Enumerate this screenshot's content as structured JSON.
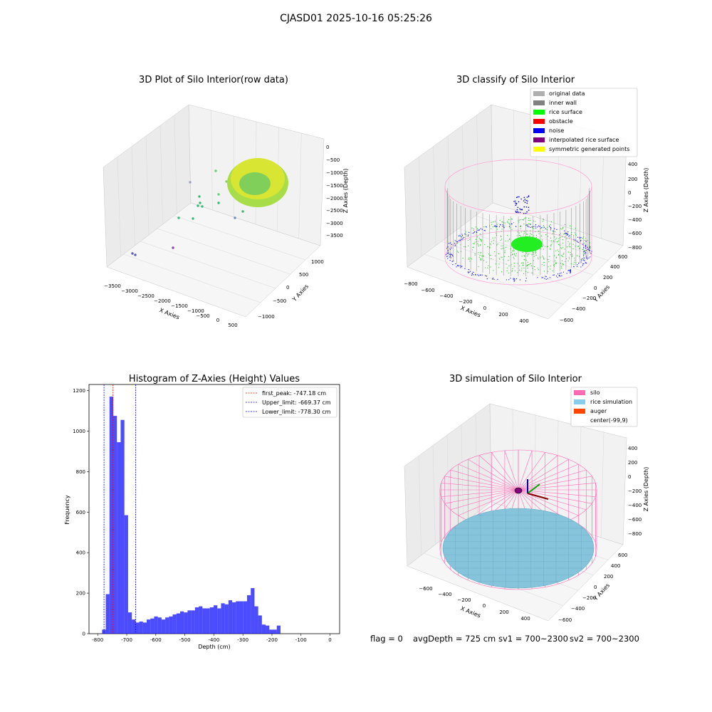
{
  "suptitle": "CJASD01 2025-10-16 05:25:26",
  "panels": {
    "raw": {
      "title": "3D Plot of Silo Interior(row data)",
      "xlabel": "X Axies",
      "ylabel": "Y Axies",
      "zlabel": "Z Axies (Depth)",
      "xticks": [
        "−3500",
        "−3000",
        "−2500",
        "−2000",
        "−1500",
        "−1000",
        "−500",
        "0",
        "500"
      ],
      "yticks": [
        "−1000",
        "−500",
        "0",
        "500",
        "1000"
      ],
      "zticks": [
        "0",
        "−500",
        "−1000",
        "−1500",
        "−2000",
        "−2500",
        "−3000",
        "−3500"
      ]
    },
    "classify": {
      "title": "3D classify of Silo Interior",
      "xlabel": "X Axies",
      "ylabel": "Y Axies",
      "zlabel": "Z Axies (Depth)",
      "xticks": [
        "−800",
        "−600",
        "−400",
        "−200",
        "0",
        "200",
        "400"
      ],
      "yticks": [
        "−600",
        "−400",
        "−200",
        "0",
        "200",
        "400",
        "600"
      ],
      "zticks": [
        "400",
        "200",
        "0",
        "−200",
        "−400",
        "−600",
        "−800"
      ],
      "legend": [
        {
          "label": "original data",
          "color": "#b0b0b0"
        },
        {
          "label": "inner wall",
          "color": "#808080"
        },
        {
          "label": "rice surface",
          "color": "#00ff00"
        },
        {
          "label": "obstacle",
          "color": "#ff0000"
        },
        {
          "label": "noise",
          "color": "#0000ff"
        },
        {
          "label": "interpolated rice surface",
          "color": "#800080"
        },
        {
          "label": "symmetric generated points",
          "color": "#ffff00"
        }
      ]
    },
    "simulation": {
      "title": "3D simulation of Silo Interior",
      "xlabel": "X Axies",
      "ylabel": "Y Axies",
      "zlabel": "Z Axies (Depth)",
      "xticks": [
        "−600",
        "−400",
        "−200",
        "0",
        "200",
        "400"
      ],
      "yticks": [
        "−600",
        "−400",
        "−200",
        "0",
        "200",
        "400",
        "600"
      ],
      "zticks": [
        "400",
        "200",
        "0",
        "−200",
        "−400",
        "−600",
        "−800"
      ],
      "legend": [
        {
          "label": "silo",
          "color": "#ff69b4"
        },
        {
          "label": "rice simulation",
          "color": "#87ceeb"
        },
        {
          "label": "auger",
          "color": "#ff4500"
        },
        {
          "label": "center(-99,9)",
          "color": ""
        }
      ]
    }
  },
  "chart_data": {
    "type": "bar",
    "title": "Histogram of Z-Axies (Height) Values",
    "xlabel": "Depth (cm)",
    "ylabel": "Frequency",
    "xlim": [
      -800,
      0
    ],
    "ylim": [
      0,
      1200
    ],
    "xticks": [
      -800,
      -700,
      -600,
      -500,
      -400,
      -300,
      -200,
      -100,
      0
    ],
    "yticks": [
      0,
      200,
      400,
      600,
      800,
      1000,
      1200
    ],
    "bin_start": -785,
    "bin_width": 12.8,
    "series": [
      {
        "color": "#0000ff",
        "values": [
          20,
          195,
          1170,
          1075,
          945,
          1055,
          585,
          105,
          70,
          55,
          60,
          55,
          70,
          75,
          85,
          80,
          70,
          80,
          85,
          95,
          100,
          110,
          105,
          115,
          115,
          130,
          135,
          125,
          125,
          130,
          140,
          125,
          150,
          145,
          165,
          155,
          160,
          160,
          160,
          190,
          225,
          135,
          90,
          45,
          40,
          20,
          20,
          40
        ]
      }
    ],
    "vlines": [
      {
        "label": "first_peak: -747.18 cm",
        "x": -747.18,
        "color": "#ff0000"
      },
      {
        "label": "Upper_limit: -669.37 cm",
        "x": -669.37,
        "color": "#0000ff"
      },
      {
        "label": "Lower_limit: -778.30 cm",
        "x": -778.3,
        "color": "#0000ff"
      }
    ]
  },
  "footer": {
    "flag": "flag = 0",
    "avg": "avgDepth = 725 cm",
    "sv1": "sv1 = 700~2300",
    "sv2": "sv2 = 700~2300"
  }
}
